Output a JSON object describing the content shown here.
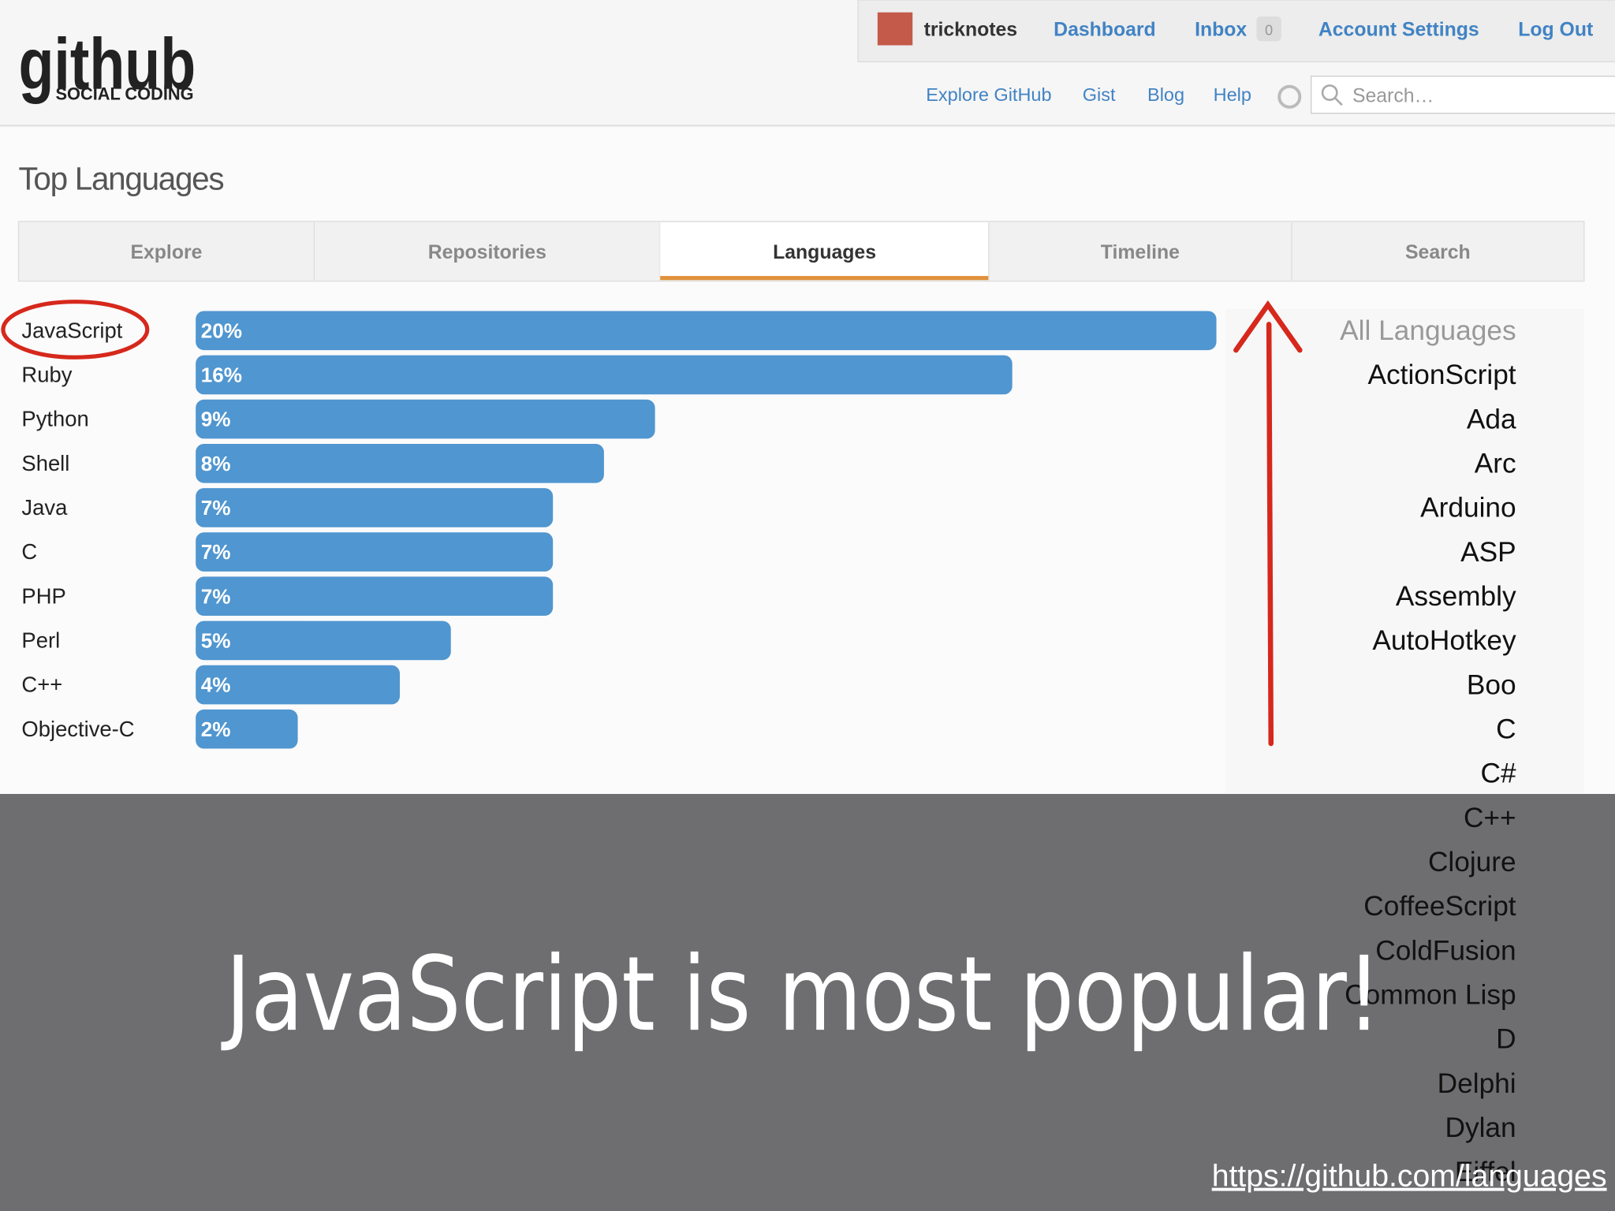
{
  "header": {
    "logo": "github",
    "logo_sub": "SOCIAL CODING",
    "user": "tricknotes",
    "nav": [
      "Dashboard",
      "Inbox",
      "Account Settings",
      "Log Out"
    ],
    "inbox_count": "0",
    "subnav": [
      "Explore GitHub",
      "Gist",
      "Blog",
      "Help"
    ],
    "search_placeholder": "Search…"
  },
  "title": "Top Languages",
  "tabs": [
    "Explore",
    "Repositories",
    "Languages",
    "Timeline",
    "Search"
  ],
  "chart_data": {
    "type": "bar",
    "categories": [
      "JavaScript",
      "Ruby",
      "Python",
      "Shell",
      "Java",
      "C",
      "PHP",
      "Perl",
      "C++",
      "Objective-C"
    ],
    "values": [
      20,
      16,
      9,
      8,
      7,
      7,
      7,
      5,
      4,
      2
    ],
    "value_labels": [
      "20%",
      "16%",
      "9%",
      "8%",
      "7%",
      "7%",
      "7%",
      "5%",
      "4%",
      "2%"
    ],
    "color": "#5096d0"
  },
  "all_languages": {
    "title": "All Languages",
    "items": [
      "ActionScript",
      "Ada",
      "Arc",
      "Arduino",
      "ASP",
      "Assembly",
      "AutoHotkey",
      "Boo",
      "C",
      "C#",
      "C++",
      "Clojure",
      "CoffeeScript",
      "ColdFusion",
      "Common Lisp",
      "D",
      "Delphi",
      "Dylan",
      "Eiffel"
    ]
  },
  "caption": "JavaScript is most popular!",
  "url": "https://github.com/languages"
}
